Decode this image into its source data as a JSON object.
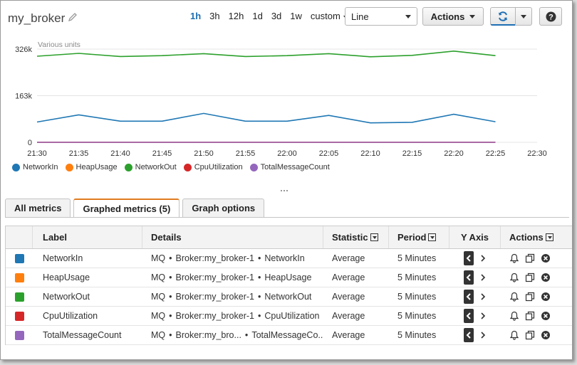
{
  "header": {
    "title": "my_broker",
    "ranges": [
      "1h",
      "3h",
      "12h",
      "1d",
      "3d",
      "1w"
    ],
    "active_range": "1h",
    "custom_label": "custom",
    "graph_type": "Line",
    "actions_label": "Actions",
    "help_label": "?"
  },
  "chart_data": {
    "type": "line",
    "title": "",
    "ylabel": "Various units",
    "y_ticks": [
      "0",
      "163k",
      "326k"
    ],
    "ylim": [
      0,
      326000
    ],
    "x": [
      "21:30",
      "21:35",
      "21:40",
      "21:45",
      "21:50",
      "21:55",
      "22:00",
      "22:05",
      "22:10",
      "22:15",
      "22:20",
      "22:25"
    ],
    "x_ticks": [
      "21:30",
      "21:35",
      "21:40",
      "21:45",
      "21:50",
      "21:55",
      "22:00",
      "22:05",
      "22:10",
      "22:15",
      "22:20",
      "22:25",
      "22:30"
    ],
    "grid": true,
    "legend_position": "bottom-left",
    "series": [
      {
        "name": "NetworkIn",
        "color": "#1f77b4",
        "values": [
          71000,
          96000,
          74000,
          74000,
          101000,
          74000,
          74000,
          94000,
          68000,
          70000,
          98000,
          72000
        ]
      },
      {
        "name": "HeapUsage",
        "color": "#ff7f0e",
        "values": [
          0,
          0,
          0,
          0,
          0,
          0,
          0,
          0,
          0,
          0,
          0,
          0
        ]
      },
      {
        "name": "NetworkOut",
        "color": "#2ca02c",
        "values": [
          301000,
          311000,
          300000,
          303000,
          310000,
          300000,
          303000,
          310000,
          299000,
          304000,
          319000,
          303000
        ]
      },
      {
        "name": "CpuUtilization",
        "color": "#d62728",
        "values": [
          0,
          0,
          0,
          0,
          0,
          0,
          0,
          0,
          0,
          0,
          0,
          0
        ]
      },
      {
        "name": "TotalMessageCount",
        "color": "#9467bd",
        "values": [
          0,
          0,
          0,
          0,
          0,
          0,
          0,
          0,
          0,
          0,
          0,
          0
        ]
      }
    ]
  },
  "tabs": [
    {
      "label": "All metrics",
      "active": false
    },
    {
      "label": "Graphed metrics (5)",
      "active": true
    },
    {
      "label": "Graph options",
      "active": false
    }
  ],
  "table": {
    "headers": {
      "label": "Label",
      "details": "Details",
      "statistic": "Statistic",
      "period": "Period",
      "yaxis": "Y Axis",
      "actions": "Actions"
    },
    "rows": [
      {
        "label": "NetworkIn",
        "color": "#1f77b4",
        "ns": "MQ",
        "dim": "Broker:my_broker-1",
        "metric": "NetworkIn",
        "statistic": "Average",
        "period": "5 Minutes"
      },
      {
        "label": "HeapUsage",
        "color": "#ff7f0e",
        "ns": "MQ",
        "dim": "Broker:my_broker-1",
        "metric": "HeapUsage",
        "statistic": "Average",
        "period": "5 Minutes"
      },
      {
        "label": "NetworkOut",
        "color": "#2ca02c",
        "ns": "MQ",
        "dim": "Broker:my_broker-1",
        "metric": "NetworkOut",
        "statistic": "Average",
        "period": "5 Minutes"
      },
      {
        "label": "CpuUtilization",
        "color": "#d62728",
        "ns": "MQ",
        "dim": "Broker:my_broker-1",
        "metric": "CpuUtilization",
        "statistic": "Average",
        "period": "5 Minutes"
      },
      {
        "label": "TotalMessageCount",
        "color": "#9467bd",
        "ns": "MQ",
        "dim": "Broker:my_bro...",
        "metric": "TotalMessageCo...",
        "statistic": "Average",
        "period": "5 Minutes"
      }
    ]
  }
}
